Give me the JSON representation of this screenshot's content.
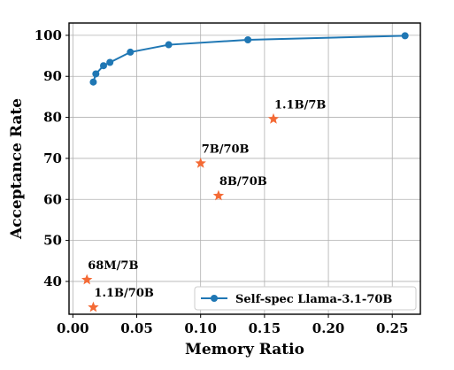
{
  "chart_data": {
    "type": "line",
    "xlabel": "Memory Ratio",
    "ylabel": "Acceptance Rate",
    "xlim": [
      -0.003,
      0.272
    ],
    "ylim": [
      32,
      103
    ],
    "grid": true,
    "legend_position": "bottom-right",
    "x_ticks": [
      "0.00",
      "0.05",
      "0.10",
      "0.15",
      "0.20",
      "0.25"
    ],
    "y_ticks": [
      "40",
      "50",
      "60",
      "70",
      "80",
      "90",
      "100"
    ],
    "series": [
      {
        "name": "Self-spec Llama-3.1-70B",
        "color": "#1f77b4",
        "marker": "circle",
        "x": [
          0.016,
          0.018,
          0.024,
          0.029,
          0.045,
          0.075,
          0.137,
          0.26
        ],
        "y": [
          88.6,
          90.6,
          92.6,
          93.4,
          95.9,
          97.7,
          98.9,
          99.9
        ]
      }
    ],
    "points": [
      {
        "label": "1.1B/7B",
        "x": 0.157,
        "y": 79.6
      },
      {
        "label": "7B/70B",
        "x": 0.1,
        "y": 68.8
      },
      {
        "label": "8B/70B",
        "x": 0.114,
        "y": 60.9
      },
      {
        "label": "68M/7B",
        "x": 0.011,
        "y": 40.4
      },
      {
        "label": "1.1B/70B",
        "x": 0.016,
        "y": 33.7
      }
    ],
    "points_color": "#f46a35",
    "points_marker": "star"
  }
}
